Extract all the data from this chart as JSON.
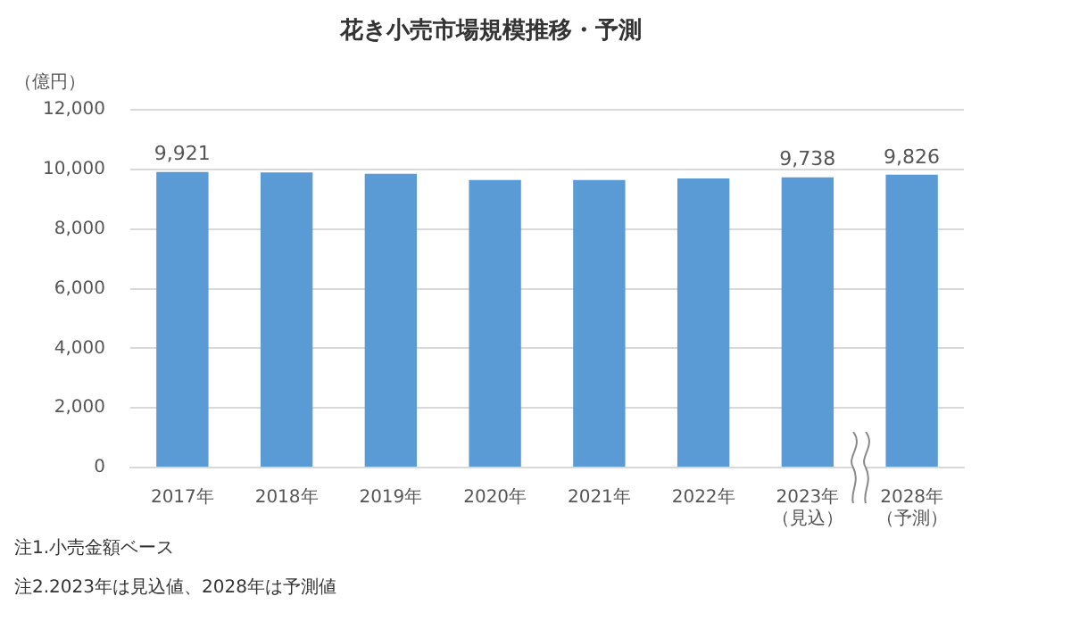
{
  "chart_data": {
    "type": "bar",
    "title": "花き小売市場規模推移・予測",
    "ylabel": "（億円）",
    "categories": [
      "2017年",
      "2018年",
      "2019年",
      "2020年",
      "2021年",
      "2022年",
      "2023年（見込）",
      "2028年（予測）"
    ],
    "values": [
      9921,
      9900,
      9860,
      9650,
      9650,
      9700,
      9738,
      9826
    ],
    "value_labels": [
      "9,921",
      null,
      null,
      null,
      null,
      null,
      "9,738",
      "9,826"
    ],
    "color": "#5b9bd5",
    "ylim": [
      0,
      12000
    ],
    "yticks": [
      {
        "value": 0,
        "label": "0"
      },
      {
        "value": 2000,
        "label": "2,000"
      },
      {
        "value": 4000,
        "label": "4,000"
      },
      {
        "value": 6000,
        "label": "6,000"
      },
      {
        "value": 8000,
        "label": "8,000"
      },
      {
        "value": 10000,
        "label": "10,000"
      },
      {
        "value": 12000,
        "label": "12,000"
      }
    ],
    "grid": "y",
    "legend": false,
    "annotations": [
      "注1.小売金額ベース",
      "注2.2023年は見込値、2028年は予測値"
    ]
  }
}
